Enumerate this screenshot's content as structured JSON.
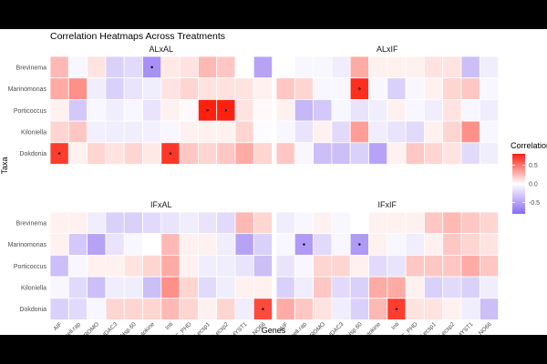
{
  "chart_data": {
    "type": "heatmap",
    "title": "Correlation Heatmaps Across Treatments",
    "xlabel": "Genes",
    "ylabel": "Taxa",
    "legend": {
      "title": "Correlation",
      "ticks": [
        0.5,
        0.0,
        -0.5
      ],
      "tick_labels": [
        "0.5",
        "0.0",
        "-0.5"
      ],
      "placement": "right"
    },
    "colors": {
      "low": "#8a6cf0",
      "mid": "#ffffff",
      "high": "#ff2010",
      "panel_bg": "#ebebeb"
    },
    "color_range": [
      -0.8,
      0.8
    ],
    "genes": [
      "AIF",
      "Bcell.rap",
      "BROMO",
      "HDAC3",
      "Hsp.60",
      "Ik.cytokine",
      "Inti",
      "JmjC_PHD",
      "Lecsp1",
      "Lecsp2",
      "MYST1",
      "NO66"
    ],
    "taxa": [
      "Brevinema",
      "Marinomonas",
      "Porticoccus",
      "Kiloniella",
      "Dokdonia"
    ],
    "panels": [
      {
        "name": "ALxAL",
        "values": [
          [
            0.25,
            -0.05,
            0.1,
            -0.25,
            -0.2,
            -0.6,
            0.08,
            0.1,
            0.25,
            0.2,
            0.0,
            -0.5
          ],
          [
            0.3,
            0.4,
            -0.1,
            -0.25,
            -0.15,
            -0.1,
            0.1,
            0.15,
            0.1,
            0.1,
            0.1,
            0.05
          ],
          [
            0.05,
            -0.3,
            -0.05,
            -0.1,
            -0.05,
            -0.15,
            0.05,
            0.02,
            0.95,
            0.95,
            0.1,
            0.02
          ],
          [
            0.15,
            0.2,
            -0.08,
            -0.1,
            -0.1,
            -0.08,
            -0.05,
            0.05,
            0.05,
            0.05,
            0.15,
            -0.02
          ],
          [
            0.7,
            0.05,
            0.15,
            0.1,
            0.15,
            0.08,
            0.72,
            0.2,
            0.15,
            0.2,
            0.3,
            0.15
          ]
        ],
        "significant": [
          [
            0,
            5
          ],
          [
            2,
            8
          ],
          [
            2,
            9
          ],
          [
            4,
            0
          ],
          [
            4,
            6
          ]
        ]
      },
      {
        "name": "ALxIF",
        "values": [
          [
            0.0,
            -0.05,
            -0.05,
            -0.1,
            0.3,
            0.05,
            0.05,
            0.05,
            0.1,
            0.1,
            -0.35,
            -0.1
          ],
          [
            0.2,
            0.15,
            -0.05,
            -0.05,
            0.75,
            -0.05,
            -0.25,
            -0.05,
            0.05,
            0.15,
            0.2,
            -0.05
          ],
          [
            0.05,
            -0.4,
            -0.3,
            -0.05,
            -0.15,
            -0.1,
            0.05,
            -0.05,
            -0.1,
            0.1,
            -0.05,
            -0.1
          ],
          [
            -0.05,
            -0.15,
            0.05,
            -0.2,
            0.35,
            -0.1,
            -0.15,
            -0.2,
            0.05,
            0.15,
            0.4,
            -0.05
          ],
          [
            0.2,
            -0.05,
            -0.35,
            -0.35,
            -0.25,
            -0.5,
            0.05,
            0.2,
            0.15,
            0.1,
            -0.2,
            -0.1
          ]
        ],
        "significant": [
          [
            1,
            4
          ]
        ]
      },
      {
        "name": "IFxAL",
        "values": [
          [
            0.05,
            0.05,
            -0.1,
            -0.25,
            -0.25,
            -0.2,
            -0.15,
            -0.1,
            -0.15,
            -0.2,
            0.25,
            0.15
          ],
          [
            0.05,
            -0.3,
            -0.5,
            -0.15,
            -0.05,
            0.0,
            0.25,
            0.05,
            0.05,
            -0.1,
            -0.5,
            -0.25
          ],
          [
            -0.35,
            -0.05,
            0.05,
            0.05,
            0.1,
            0.15,
            0.3,
            0.05,
            -0.1,
            -0.1,
            -0.15,
            -0.35
          ],
          [
            -0.05,
            -0.2,
            -0.35,
            -0.1,
            -0.1,
            -0.35,
            0.4,
            0.15,
            -0.2,
            -0.1,
            0.05,
            0.05
          ],
          [
            -0.25,
            -0.2,
            -0.05,
            0.15,
            0.15,
            0.15,
            0.25,
            0.15,
            0.05,
            0.15,
            -0.1,
            0.65
          ]
        ],
        "significant": [
          [
            4,
            11
          ]
        ]
      },
      {
        "name": "IFxIF",
        "values": [
          [
            -0.1,
            -0.05,
            0.05,
            -0.05,
            0.0,
            0.05,
            0.05,
            0.05,
            0.2,
            0.25,
            0.2,
            0.15
          ],
          [
            -0.05,
            -0.55,
            -0.2,
            -0.05,
            -0.55,
            0.05,
            -0.05,
            -0.1,
            0.05,
            0.2,
            0.15,
            0.1
          ],
          [
            -0.15,
            -0.05,
            0.15,
            0.15,
            0.05,
            -0.2,
            -0.15,
            0.2,
            0.2,
            0.2,
            0.3,
            0.2
          ],
          [
            -0.25,
            -0.1,
            0.2,
            -0.2,
            -0.25,
            0.3,
            0.3,
            0.05,
            -0.25,
            -0.2,
            -0.25,
            -0.1
          ],
          [
            0.3,
            0.2,
            0.1,
            -0.1,
            -0.25,
            0.25,
            0.7,
            0.1,
            0.1,
            0.05,
            -0.1,
            -0.35
          ]
        ],
        "significant": [
          [
            1,
            1
          ],
          [
            1,
            4
          ],
          [
            4,
            6
          ]
        ]
      }
    ]
  }
}
